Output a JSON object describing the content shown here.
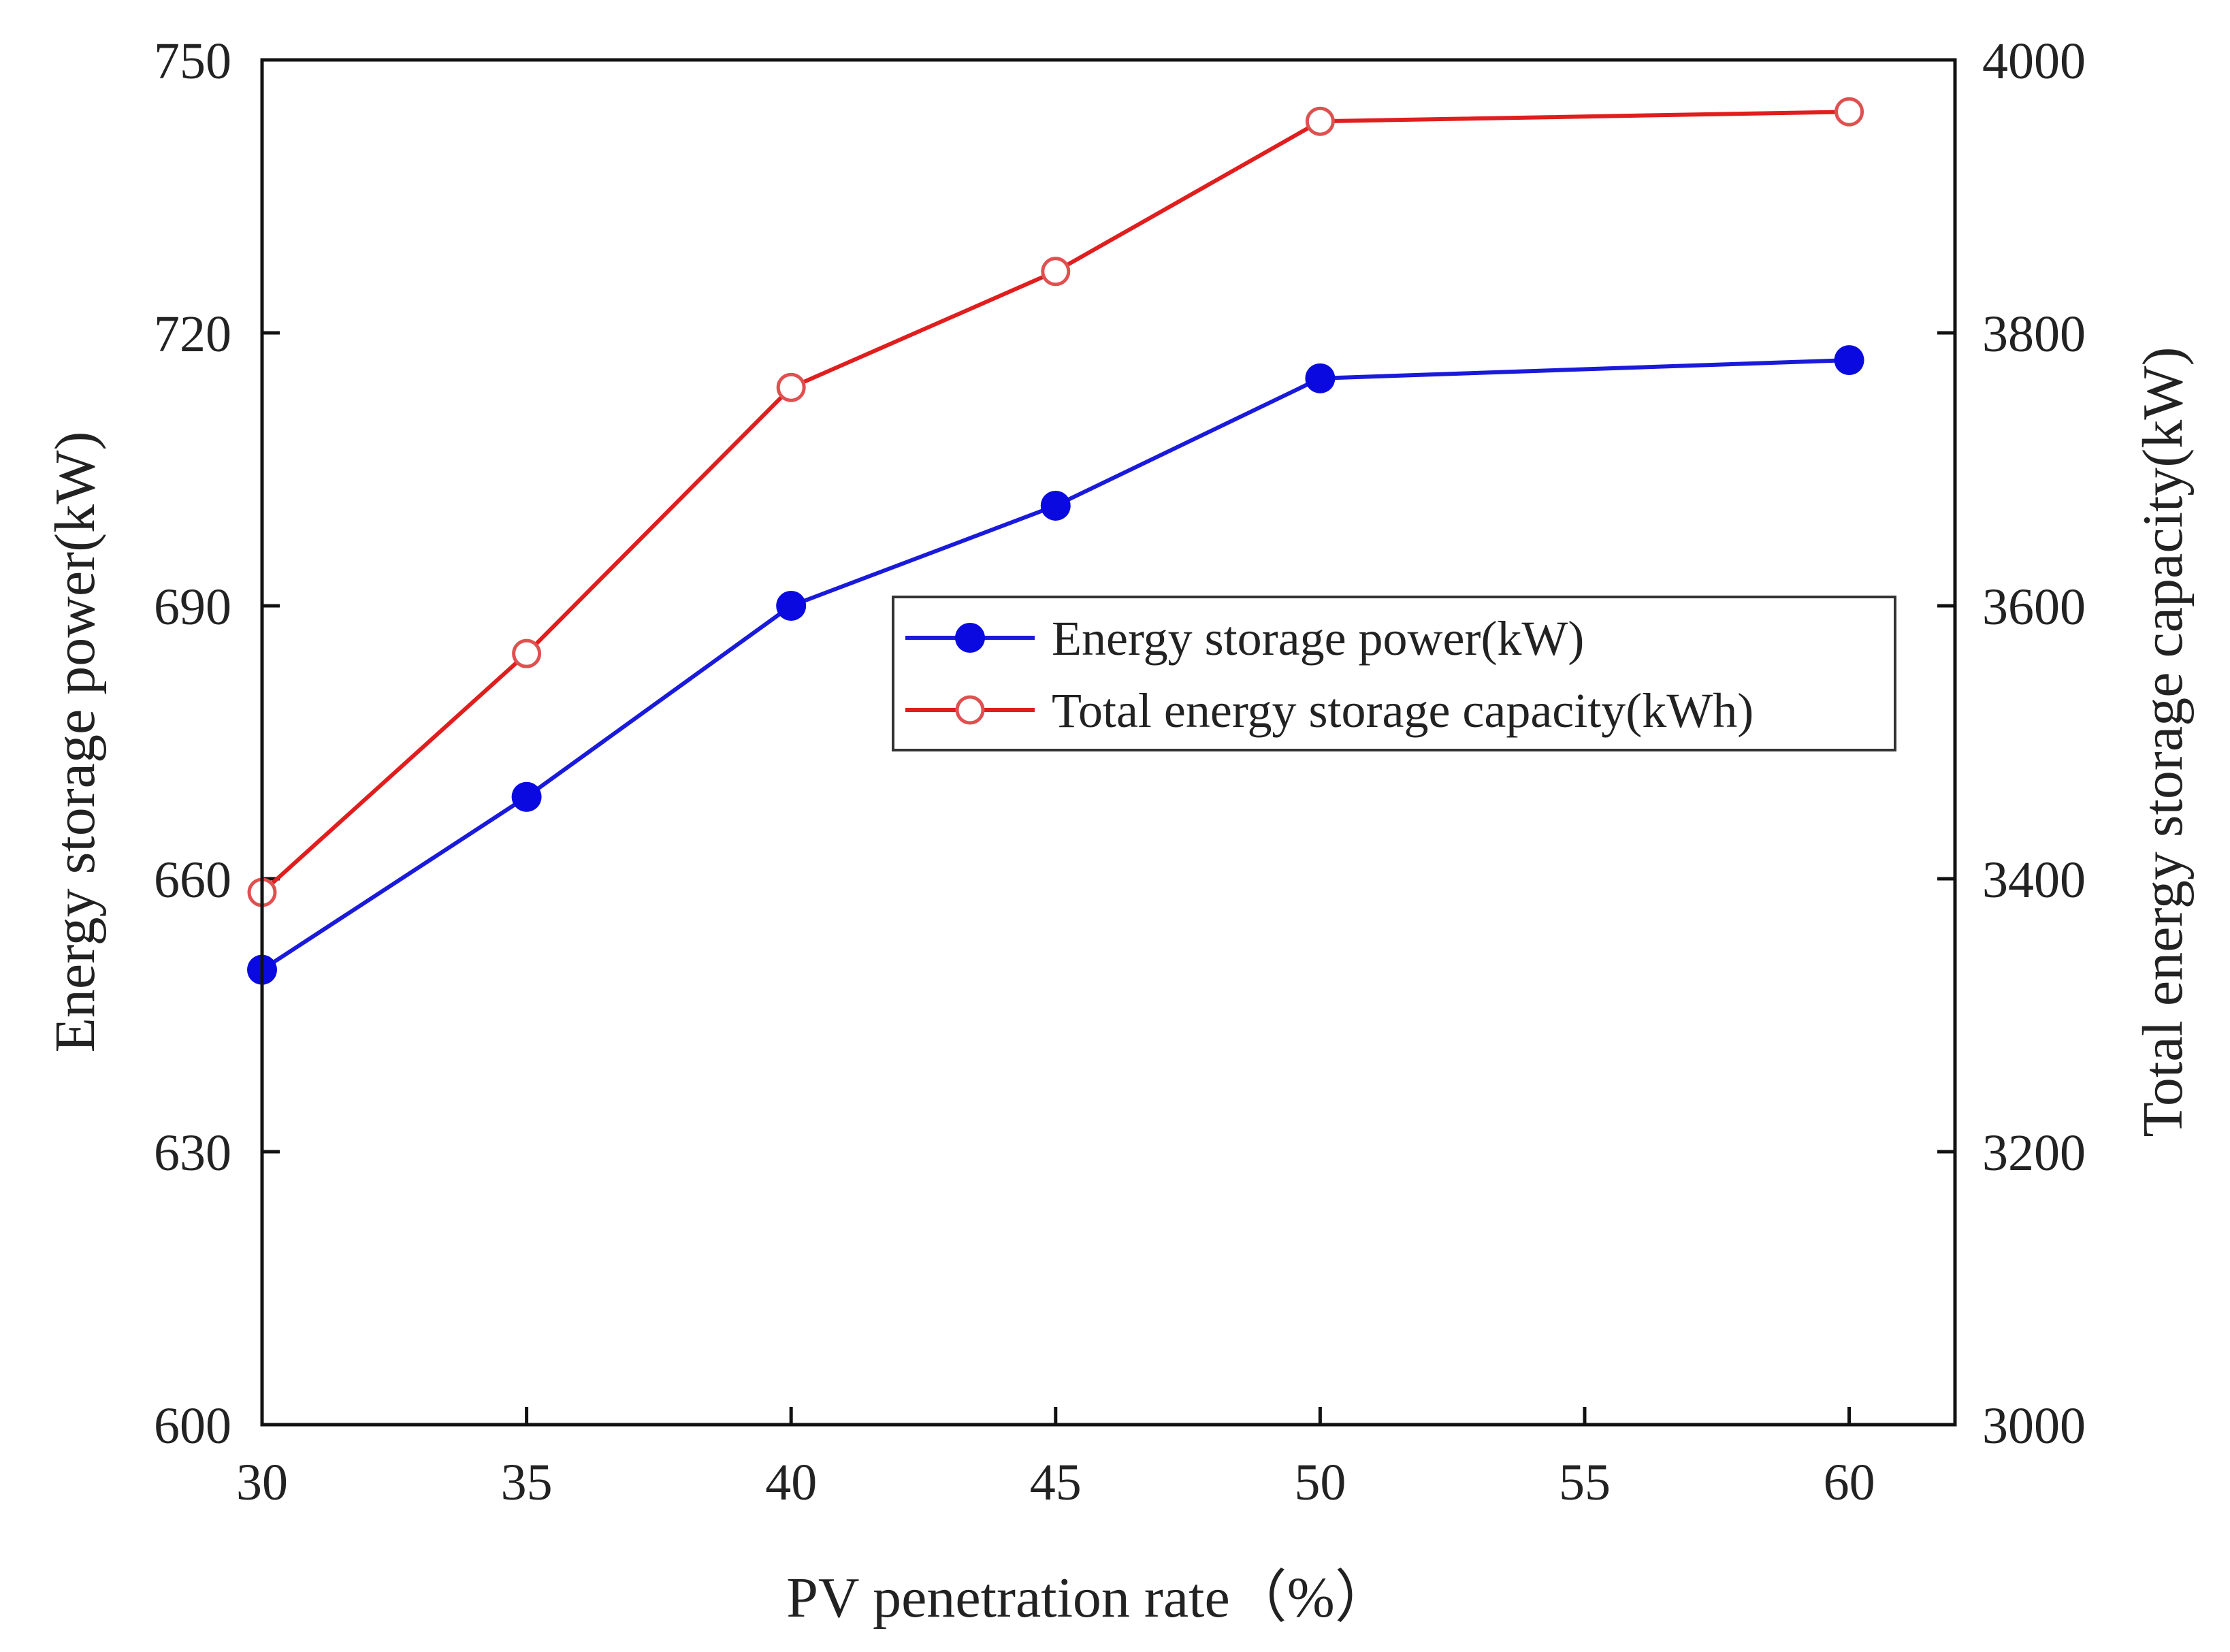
{
  "chart_data": {
    "type": "line",
    "title": "",
    "xlabel": "PV penetration rate（%）",
    "ylabel_left": "Energy storage power(kW)",
    "ylabel_right": "Total energy storage capacity(kW)",
    "xlim": [
      30,
      62
    ],
    "ylim_left": [
      600,
      750
    ],
    "ylim_right": [
      3000,
      4000
    ],
    "x_ticks": [
      "30",
      "35",
      "40",
      "45",
      "50",
      "55",
      "60"
    ],
    "y_left_ticks": [
      "600",
      "630",
      "660",
      "690",
      "720",
      "750"
    ],
    "y_right_ticks": [
      "3000",
      "3200",
      "3400",
      "3600",
      "3800",
      "4000"
    ],
    "grid": false,
    "legend_position": "center-right",
    "series": [
      {
        "name": "Energy storage power(kW)",
        "axis": "left",
        "color": "#1a1adb",
        "marker_color": "#0a0ae0",
        "marker": "filled-circle",
        "x": [
          30,
          35,
          40,
          45,
          50,
          60
        ],
        "values": [
          650,
          669,
          690,
          701,
          715,
          717
        ]
      },
      {
        "name": "Total energy storage capacity(kWh)",
        "axis": "right",
        "color": "#e01e1e",
        "marker_color": "#e05050",
        "marker": "open-circle",
        "x": [
          30,
          35,
          40,
          45,
          50,
          60
        ],
        "values": [
          3390,
          3565,
          3760,
          3845,
          3955,
          3962
        ]
      }
    ]
  }
}
